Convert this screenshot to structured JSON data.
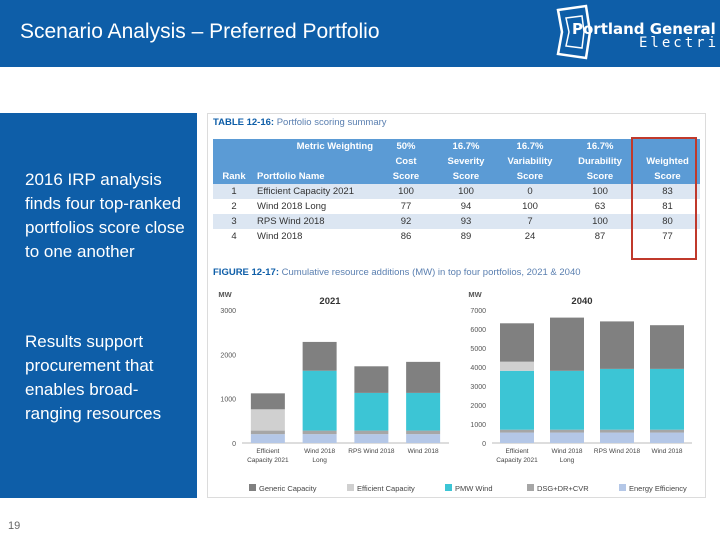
{
  "slide": {
    "title": "Scenario Analysis – Preferred Portfolio",
    "page_number": "19",
    "logo": {
      "line1": "Portland General",
      "line2": "Electric"
    },
    "bullets": [
      "2016 IRP analysis finds four top-ranked portfolios score close to one another",
      "Results support procurement that enables broad-ranging resources"
    ]
  },
  "table": {
    "caption_num": "TABLE 12-16:",
    "caption_text": "Portfolio scoring summary",
    "metric_weighting_label": "Metric Weighting",
    "weights": [
      "50%",
      "16.7%",
      "16.7%",
      "16.7%"
    ],
    "header1": [
      "Cost",
      "Severity",
      "Variability",
      "Durability",
      "Weighted"
    ],
    "header2": [
      "Rank",
      "Portfolio Name",
      "Score",
      "Score",
      "Score",
      "Score",
      "Score"
    ],
    "rows": [
      {
        "rank": "1",
        "name": "Efficient Capacity 2021",
        "cost": "100",
        "severity": "100",
        "variability": "0",
        "durability": "100",
        "weighted": "83"
      },
      {
        "rank": "2",
        "name": "Wind 2018 Long",
        "cost": "77",
        "severity": "94",
        "variability": "100",
        "durability": "63",
        "weighted": "81"
      },
      {
        "rank": "3",
        "name": "RPS Wind 2018",
        "cost": "92",
        "severity": "93",
        "variability": "7",
        "durability": "100",
        "weighted": "80"
      },
      {
        "rank": "4",
        "name": "Wind 2018",
        "cost": "86",
        "severity": "89",
        "variability": "24",
        "durability": "87",
        "weighted": "77"
      }
    ]
  },
  "figure": {
    "caption_num": "FIGURE 12-17:",
    "caption_text": "Cumulative resource additions (MW) in top four portfolios, 2021 & 2040"
  },
  "chart_data": [
    {
      "type": "bar",
      "stacked": true,
      "title": "2021",
      "ylabel": "MW",
      "ylim": [
        0,
        3000
      ],
      "yticks": [
        0,
        1000,
        2000,
        3000
      ],
      "categories": [
        "Efficient Capacity 2021",
        "Wind 2018 Long",
        "RPS Wind 2018",
        "Wind 2018"
      ],
      "category_labels": [
        [
          "Efficient",
          "Capacity 2021"
        ],
        [
          "Wind 2018",
          "Long"
        ],
        [
          "RPS Wind 2018"
        ],
        [
          "Wind 2018"
        ]
      ],
      "series": [
        {
          "name": "Energy Efficiency",
          "color": "#b4c7e7",
          "values": [
            200,
            200,
            200,
            200
          ]
        },
        {
          "name": "DSG+DR+CVR",
          "color": "#a6a6a6",
          "values": [
            80,
            80,
            80,
            80
          ]
        },
        {
          "name": "PMW Wind",
          "color": "#3cc5d5",
          "values": [
            0,
            1350,
            850,
            850
          ]
        },
        {
          "name": "Efficient Capacity",
          "color": "#d0d0d0",
          "values": [
            480,
            0,
            0,
            0
          ]
        },
        {
          "name": "Generic Capacity",
          "color": "#808080",
          "values": [
            360,
            650,
            600,
            700
          ]
        }
      ],
      "legend": "bottom"
    },
    {
      "type": "bar",
      "stacked": true,
      "title": "2040",
      "ylabel": "MW",
      "ylim": [
        0,
        7000
      ],
      "yticks": [
        0,
        1000,
        2000,
        3000,
        4000,
        5000,
        6000,
        7000
      ],
      "categories": [
        "Efficient Capacity 2021",
        "Wind 2018 Long",
        "RPS Wind 2018",
        "Wind 2018"
      ],
      "category_labels": [
        [
          "Efficient",
          "Capacity 2021"
        ],
        [
          "Wind 2018",
          "Long"
        ],
        [
          "RPS Wind 2018"
        ],
        [
          "Wind 2018"
        ]
      ],
      "series": [
        {
          "name": "Energy Efficiency",
          "color": "#b4c7e7",
          "values": [
            550,
            550,
            550,
            550
          ]
        },
        {
          "name": "DSG+DR+CVR",
          "color": "#a6a6a6",
          "values": [
            150,
            150,
            150,
            150
          ]
        },
        {
          "name": "PMW Wind",
          "color": "#3cc5d5",
          "values": [
            3100,
            3100,
            3200,
            3200
          ]
        },
        {
          "name": "Efficient Capacity",
          "color": "#d0d0d0",
          "values": [
            480,
            0,
            0,
            0
          ]
        },
        {
          "name": "Generic Capacity",
          "color": "#808080",
          "values": [
            2020,
            2800,
            2500,
            2300
          ]
        }
      ],
      "legend": "bottom"
    }
  ],
  "legend": [
    {
      "name": "Generic Capacity",
      "color": "#808080"
    },
    {
      "name": "Efficient Capacity",
      "color": "#d0d0d0"
    },
    {
      "name": "PMW Wind",
      "color": "#3cc5d5"
    },
    {
      "name": "DSG+DR+CVR",
      "color": "#a6a6a6"
    },
    {
      "name": "Energy Efficiency",
      "color": "#b4c7e7"
    }
  ]
}
